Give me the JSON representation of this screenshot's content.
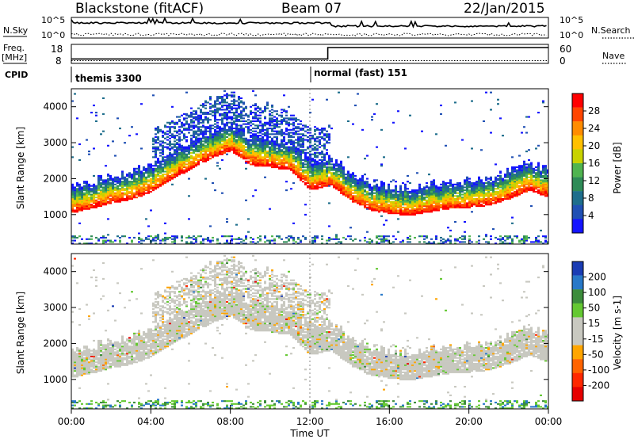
{
  "header": {
    "station": "Blackstone (fitACF)",
    "beam": "Beam 07",
    "date": "22/Jan/2015"
  },
  "panel_labels": {
    "nsky": "N.Sky",
    "freq_line1": "Freq.",
    "freq_line2": "[MHz]",
    "cpid": "CPID",
    "nsearch": "N.Search",
    "nave": "Nave"
  },
  "nsky_axis": {
    "top": "10^5",
    "bottom": "10^0"
  },
  "freq_axis": {
    "left_ticks": [
      "18",
      "8"
    ],
    "right_ticks": [
      "60",
      "0"
    ]
  },
  "cpid_segments": [
    {
      "label": "themis 3300",
      "start_hour": 0
    },
    {
      "label": "normal (fast) 151",
      "start_hour": 12.9
    }
  ],
  "time_axis": {
    "title": "Time UT",
    "ticks": [
      "00:00",
      "04:00",
      "08:00",
      "12:00",
      "16:00",
      "20:00",
      "00:00"
    ],
    "range_hours": [
      0,
      24
    ]
  },
  "range_axis": {
    "title": "Slant Range [km]",
    "ticks": [
      "1000",
      "2000",
      "3000",
      "4000"
    ],
    "range_km": [
      180,
      4500
    ]
  },
  "power_colorbar": {
    "title": "Power [dB]",
    "ticks": [
      "28",
      "24",
      "20",
      "16",
      "12",
      "8",
      "4"
    ],
    "colors": [
      "#ff0000",
      "#ff4500",
      "#ff8c00",
      "#ffc000",
      "#c8d200",
      "#50b450",
      "#2e8b57",
      "#1e6e8c",
      "#2050b4",
      "#1414ff"
    ]
  },
  "velocity_colorbar": {
    "title": "Velocity [m s-1]",
    "ticks": [
      "200",
      "100",
      "50",
      "15",
      "-15",
      "-50",
      "-100",
      "-200"
    ],
    "colors": [
      "#1a3cb4",
      "#2878c8",
      "#3c8c3c",
      "#64c832",
      "#c8c8c0",
      "#c8c8c0",
      "#ffa500",
      "#ff6400",
      "#ff2800",
      "#e60000"
    ]
  },
  "chart_data": {
    "type": "heatmap",
    "x_unit": "hours UT",
    "y_unit": "km",
    "main_echo_band": [
      {
        "x": 0.0,
        "y": 1180
      },
      {
        "x": 1.0,
        "y": 1300
      },
      {
        "x": 2.0,
        "y": 1450
      },
      {
        "x": 3.0,
        "y": 1550
      },
      {
        "x": 4.0,
        "y": 1750
      },
      {
        "x": 5.0,
        "y": 2100
      },
      {
        "x": 6.0,
        "y": 2400
      },
      {
        "x": 7.0,
        "y": 2700
      },
      {
        "x": 8.0,
        "y": 2900
      },
      {
        "x": 9.0,
        "y": 2500
      },
      {
        "x": 10.0,
        "y": 2450
      },
      {
        "x": 11.0,
        "y": 2350
      },
      {
        "x": 12.0,
        "y": 1800
      },
      {
        "x": 13.0,
        "y": 1950
      },
      {
        "x": 14.0,
        "y": 1500
      },
      {
        "x": 15.0,
        "y": 1250
      },
      {
        "x": 16.0,
        "y": 1150
      },
      {
        "x": 17.0,
        "y": 1100
      },
      {
        "x": 18.0,
        "y": 1200
      },
      {
        "x": 19.0,
        "y": 1300
      },
      {
        "x": 20.0,
        "y": 1300
      },
      {
        "x": 21.0,
        "y": 1400
      },
      {
        "x": 22.0,
        "y": 1550
      },
      {
        "x": 23.0,
        "y": 1800
      },
      {
        "x": 24.0,
        "y": 1600
      }
    ],
    "frequency_mhz": [
      {
        "x": 0,
        "y": 10
      },
      {
        "x": 12.9,
        "y": 10
      },
      {
        "x": 12.9,
        "y": 18
      },
      {
        "x": 24,
        "y": 18
      }
    ],
    "nave": [
      {
        "x": 0,
        "y": 5
      },
      {
        "x": 24,
        "y": 5
      }
    ]
  }
}
